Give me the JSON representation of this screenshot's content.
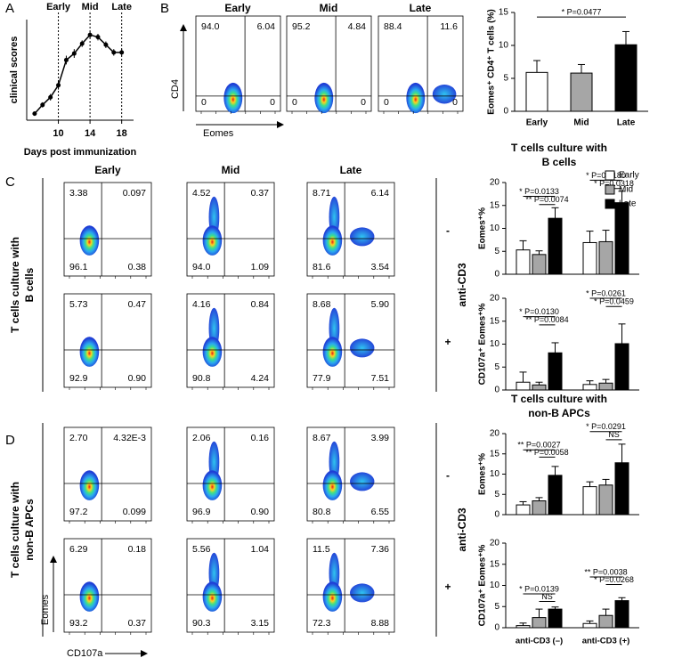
{
  "panels": [
    "A",
    "B",
    "C",
    "D"
  ],
  "flow": {
    "B": {
      "columns": [
        "Early",
        "Mid",
        "Late"
      ],
      "y_label": "CD4",
      "x_label": "Eomes",
      "plots": [
        [
          "94.0",
          "6.04",
          "0",
          "0"
        ],
        [
          "95.2",
          "4.84",
          "0",
          "0"
        ],
        [
          "88.4",
          "11.6",
          "0",
          "0"
        ]
      ]
    },
    "C": {
      "columns": [
        "Early",
        "Mid",
        "Late"
      ],
      "row_title": [
        "T cells culture with",
        "B cells"
      ],
      "treatment": "anti-CD3",
      "rows": [
        "-",
        "+"
      ],
      "plots": [
        [
          [
            "3.38",
            "0.097",
            "96.1",
            "0.38"
          ],
          [
            "4.52",
            "0.37",
            "94.0",
            "1.09"
          ],
          [
            "8.71",
            "6.14",
            "81.6",
            "3.54"
          ]
        ],
        [
          [
            "5.73",
            "0.47",
            "92.9",
            "0.90"
          ],
          [
            "4.16",
            "0.84",
            "90.8",
            "4.24"
          ],
          [
            "8.68",
            "5.90",
            "77.9",
            "7.51"
          ]
        ]
      ]
    },
    "D": {
      "row_title": [
        "T cells culture with",
        "non-B APCs"
      ],
      "treatment": "anti-CD3",
      "rows": [
        "-",
        "+"
      ],
      "y_label": "Eomes",
      "x_label": "CD107a",
      "plots": [
        [
          [
            "2.70",
            "4.32E-3",
            "97.2",
            "0.099"
          ],
          [
            "2.06",
            "0.16",
            "96.9",
            "0.90"
          ],
          [
            "8.67",
            "3.99",
            "80.8",
            "6.55"
          ]
        ],
        [
          [
            "6.29",
            "0.18",
            "93.2",
            "0.37"
          ],
          [
            "5.56",
            "1.04",
            "90.3",
            "3.15"
          ],
          [
            "11.5",
            "7.36",
            "72.3",
            "8.88"
          ]
        ]
      ]
    }
  },
  "chart_data": [
    {
      "type": "line",
      "x_label": "Days post immunization",
      "y_label": "clinical scores",
      "x": [
        7,
        8,
        9,
        10,
        11,
        12,
        13,
        14,
        15,
        16,
        17,
        18
      ],
      "values": [
        0.3,
        0.7,
        1.05,
        1.6,
        2.75,
        3.05,
        3.5,
        3.9,
        3.8,
        3.45,
        3.1,
        3.1
      ],
      "errors": [
        0.1,
        0.12,
        0.15,
        0.2,
        0.2,
        0.2,
        0.15,
        0.15,
        0.15,
        0.15,
        0.15,
        0.15
      ],
      "color": "#000000",
      "xlim": [
        6,
        19.5
      ],
      "ylim": [
        0,
        4.6
      ],
      "xticks": [
        10,
        14,
        18
      ],
      "vlines": [
        {
          "value": 10,
          "label": "Early"
        },
        {
          "value": 14,
          "label": "Mid"
        },
        {
          "value": 18,
          "label": "Late"
        }
      ]
    },
    {
      "type": "bar",
      "y_label": "Eomes⁺ CD4⁺ T cells (%)",
      "categories": [
        "Early",
        "Mid",
        "Late"
      ],
      "values": [
        5.9,
        5.8,
        10.1
      ],
      "errors": [
        1.8,
        1.3,
        2.0
      ],
      "colors": [
        "#ffffff",
        "#a6a6a6",
        "#000000"
      ],
      "ylim": [
        0,
        15
      ],
      "yticks": [
        0,
        5,
        10,
        15
      ],
      "annotations": [
        "* P=0.0477"
      ]
    },
    {
      "type": "bar",
      "title": [
        "T cells culture with",
        "B cells"
      ],
      "y_label": "Eomes⁺%",
      "categories": [
        null,
        null
      ],
      "legend": "upper right",
      "series": [
        {
          "name": "Early",
          "color": "#ffffff",
          "values": [
            5.3,
            6.9
          ],
          "errors": [
            2.0,
            2.5
          ]
        },
        {
          "name": "Mid",
          "color": "#a6a6a6",
          "values": [
            4.3,
            7.1
          ],
          "errors": [
            0.8,
            2.5
          ]
        },
        {
          "name": "Late",
          "color": "#000000",
          "values": [
            12.2,
            15.6
          ],
          "errors": [
            2.3,
            2.5
          ]
        }
      ],
      "ylim": [
        0,
        20
      ],
      "yticks": [
        0,
        5,
        10,
        15,
        20
      ],
      "annotations": [
        "* P=0.0133",
        "** P=0.0074",
        "* P=0.0180",
        "* P=0.0318"
      ]
    },
    {
      "type": "bar",
      "y_label": "CD107a⁺ Eomes⁺%",
      "categories": [
        null,
        null
      ],
      "series": [
        {
          "name": "Early",
          "color": "#ffffff",
          "values": [
            1.7,
            1.2
          ],
          "errors": [
            2.2,
            0.8
          ]
        },
        {
          "name": "Mid",
          "color": "#a6a6a6",
          "values": [
            1.1,
            1.5
          ],
          "errors": [
            0.6,
            0.8
          ]
        },
        {
          "name": "Late",
          "color": "#000000",
          "values": [
            8.1,
            10.1
          ],
          "errors": [
            2.2,
            4.3
          ]
        }
      ],
      "ylim": [
        0,
        20
      ],
      "yticks": [
        0,
        5,
        10,
        15,
        20
      ],
      "annotations": [
        "* P=0.0130",
        "** P=0.0084",
        "* P=0.0261",
        "* P=0.0459"
      ]
    },
    {
      "type": "bar",
      "title": [
        "T cells culture with",
        "non-B APCs"
      ],
      "y_label": "Eomes⁺%",
      "categories": [
        null,
        null
      ],
      "series": [
        {
          "name": "Early",
          "color": "#ffffff",
          "values": [
            2.4,
            6.9
          ],
          "errors": [
            0.8,
            1.2
          ]
        },
        {
          "name": "Mid",
          "color": "#a6a6a6",
          "values": [
            3.4,
            7.3
          ],
          "errors": [
            0.8,
            1.4
          ]
        },
        {
          "name": "Late",
          "color": "#000000",
          "values": [
            9.7,
            12.8
          ],
          "errors": [
            2.2,
            4.6
          ]
        }
      ],
      "ylim": [
        0,
        20
      ],
      "yticks": [
        0,
        5,
        10,
        15,
        20
      ],
      "annotations": [
        "** P=0.0027",
        "** P=0.0058",
        "* P=0.0291",
        "NS"
      ]
    },
    {
      "type": "bar",
      "y_label": "CD107a⁺ Eomes⁺%",
      "categories": [
        "anti-CD3 (–)",
        "anti-CD3 (+)"
      ],
      "series": [
        {
          "name": "Early",
          "color": "#ffffff",
          "values": [
            0.5,
            1.0
          ],
          "errors": [
            0.6,
            0.6
          ]
        },
        {
          "name": "Mid",
          "color": "#a6a6a6",
          "values": [
            2.4,
            2.9
          ],
          "errors": [
            2.0,
            1.5
          ]
        },
        {
          "name": "Late",
          "color": "#000000",
          "values": [
            4.4,
            6.4
          ],
          "errors": [
            0.5,
            0.7
          ]
        }
      ],
      "ylim": [
        0,
        20
      ],
      "yticks": [
        0,
        5,
        10,
        15,
        20
      ],
      "annotations": [
        "* P=0.0139",
        "NS",
        "** P=0.0038",
        "* P=0.0268"
      ]
    }
  ]
}
